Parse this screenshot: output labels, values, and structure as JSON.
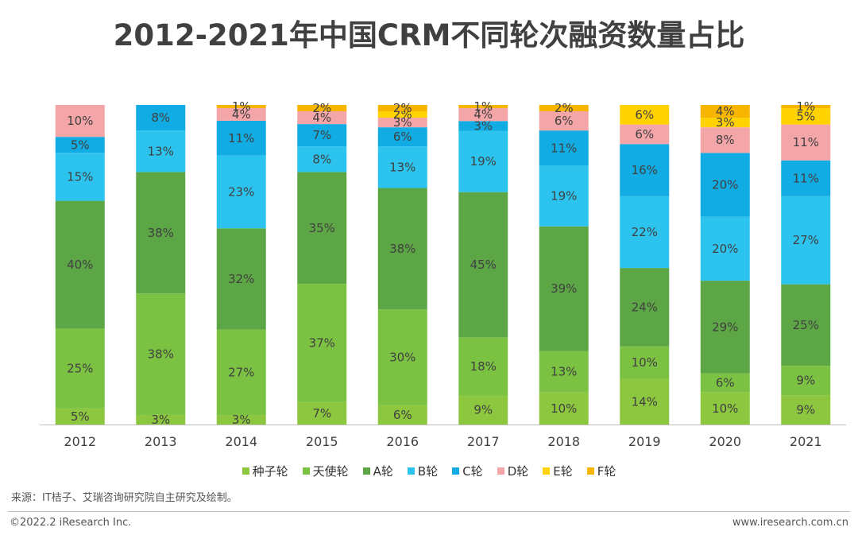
{
  "title": "2012-2021年中国CRM不同轮次融资数量占比",
  "footer": {
    "source": "来源：IT桔子、艾瑞咨询研究院自主研究及绘制。",
    "copyright": "©2022.2 iResearch Inc.",
    "website": "www.iresearch.com.cn"
  },
  "chart_data": {
    "type": "bar",
    "stacked": true,
    "percent": true,
    "categories": [
      "2012",
      "2013",
      "2014",
      "2015",
      "2016",
      "2017",
      "2018",
      "2019",
      "2020",
      "2021"
    ],
    "series": [
      {
        "name": "种子轮",
        "color": "#8dc63f",
        "values": [
          5,
          3,
          3,
          7,
          6,
          9,
          10,
          14,
          10,
          9
        ]
      },
      {
        "name": "天使轮",
        "color": "#7cc242",
        "values": [
          25,
          38,
          27,
          37,
          30,
          18,
          13,
          10,
          6,
          9
        ]
      },
      {
        "name": "A轮",
        "color": "#5da646",
        "values": [
          40,
          38,
          32,
          35,
          38,
          45,
          39,
          24,
          29,
          25
        ]
      },
      {
        "name": "B轮",
        "color": "#2cc4ef",
        "values": [
          15,
          13,
          23,
          8,
          13,
          19,
          19,
          22,
          20,
          27
        ]
      },
      {
        "name": "C轮",
        "color": "#10ace3",
        "values": [
          5,
          8,
          11,
          7,
          6,
          3,
          11,
          16,
          20,
          11
        ]
      },
      {
        "name": "D轮",
        "color": "#f3a5a8",
        "values": [
          10,
          0,
          4,
          4,
          3,
          4,
          6,
          6,
          8,
          11
        ]
      },
      {
        "name": "E轮",
        "color": "#ffd200",
        "values": [
          0,
          0,
          0,
          0,
          2,
          0,
          0,
          6,
          3,
          5
        ]
      },
      {
        "name": "F轮",
        "color": "#f7b500",
        "values": [
          0,
          0,
          1,
          2,
          2,
          1,
          2,
          0,
          4,
          1
        ]
      }
    ],
    "ylim": [
      0,
      100
    ],
    "legend_position": "bottom",
    "grid": false
  }
}
